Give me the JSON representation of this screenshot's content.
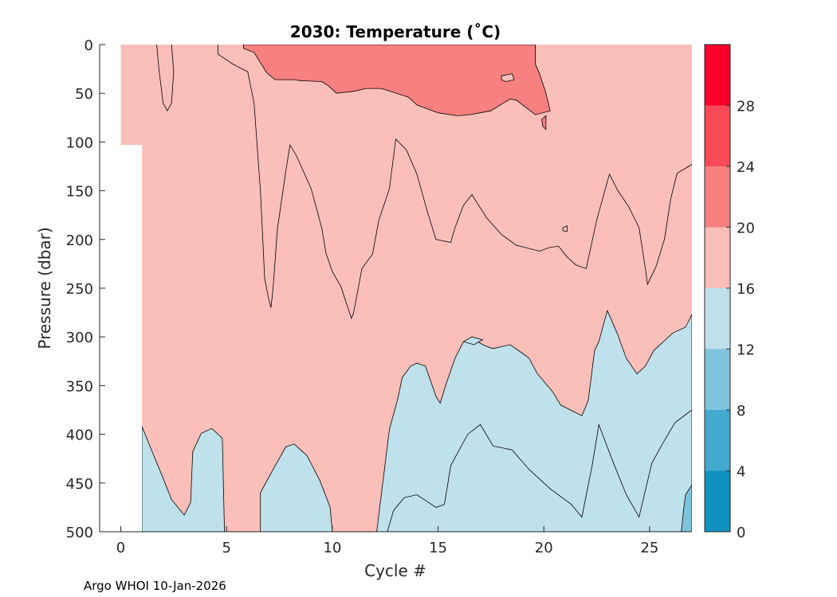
{
  "chart_data": {
    "type": "contour",
    "title": "2030:  Temperature (˚C)",
    "xlabel": "Cycle #",
    "ylabel": "Pressure (dbar)",
    "xlim": [
      -1,
      27
    ],
    "ylim": [
      500,
      0
    ],
    "xticks": [
      0,
      5,
      10,
      15,
      20,
      25
    ],
    "yticks": [
      0,
      50,
      100,
      150,
      200,
      250,
      300,
      350,
      400,
      450,
      500
    ],
    "colorbar": {
      "levels": [
        0,
        4,
        8,
        12,
        16,
        20,
        24,
        28,
        32
      ],
      "tick_labels": [
        0,
        4,
        8,
        12,
        16,
        20,
        24,
        28
      ],
      "colors": [
        "#0e90c0",
        "#42a9cf",
        "#7fc3dd",
        "#bfe1ec",
        "#fbbfba",
        "#f88080",
        "#f74a57",
        "#f9002a"
      ]
    },
    "background_band": {
      "from": 16,
      "to": 20,
      "color": "#fbbfba"
    },
    "regions": [
      {
        "name": "warm-20-24",
        "level": "20-24",
        "color": "#f88080",
        "points": [
          [
            5.8,
            0
          ],
          [
            19.6,
            0
          ],
          [
            19.6,
            20
          ],
          [
            19.8,
            30
          ],
          [
            20.1,
            50
          ],
          [
            20.3,
            68
          ],
          [
            19.6,
            72
          ],
          [
            18.7,
            57
          ],
          [
            18.4,
            56
          ],
          [
            17.5,
            68
          ],
          [
            17,
            70
          ],
          [
            16.5,
            72
          ],
          [
            15.9,
            73
          ],
          [
            15,
            70
          ],
          [
            14,
            62
          ],
          [
            13.6,
            54
          ],
          [
            12.6,
            47
          ],
          [
            12.3,
            45
          ],
          [
            11.6,
            45
          ],
          [
            11,
            48
          ],
          [
            10.6,
            49
          ],
          [
            10.2,
            50
          ],
          [
            9.8,
            42
          ],
          [
            9.5,
            38
          ],
          [
            8.5,
            37
          ],
          [
            8.2,
            36
          ],
          [
            7.6,
            36
          ],
          [
            7.3,
            36
          ],
          [
            6.9,
            29
          ],
          [
            6.3,
            8
          ],
          [
            5.8,
            4
          ],
          [
            5.8,
            0
          ]
        ]
      },
      {
        "name": "cool-12-16",
        "level": "12-16",
        "color": "#bfe1ec",
        "points": [
          [
            1,
            392
          ],
          [
            1.3,
            408
          ],
          [
            2,
            445
          ],
          [
            2.4,
            467
          ],
          [
            3,
            483
          ],
          [
            3.3,
            470
          ],
          [
            3.4,
            418
          ],
          [
            3.8,
            399
          ],
          [
            4.3,
            394
          ],
          [
            4.8,
            404
          ],
          [
            4.9,
            500
          ],
          [
            6.6,
            500
          ],
          [
            6.6,
            460
          ],
          [
            7.2,
            436
          ],
          [
            7.8,
            413
          ],
          [
            8.2,
            410
          ],
          [
            8.8,
            422
          ],
          [
            9.4,
            447
          ],
          [
            9.9,
            475
          ],
          [
            10,
            500
          ],
          [
            12.1,
            500
          ],
          [
            12.3,
            465
          ],
          [
            12.7,
            395
          ],
          [
            13.1,
            363
          ],
          [
            13.3,
            342
          ],
          [
            13.7,
            330
          ],
          [
            14,
            327
          ],
          [
            14.4,
            330
          ],
          [
            14.9,
            361
          ],
          [
            15.1,
            368
          ],
          [
            15.4,
            347
          ],
          [
            15.8,
            322
          ],
          [
            16.2,
            305
          ],
          [
            16.8,
            304
          ],
          [
            17.2,
            309
          ],
          [
            17.6,
            312
          ],
          [
            18.4,
            308
          ],
          [
            19,
            317
          ],
          [
            19.3,
            322
          ],
          [
            19.7,
            338
          ],
          [
            20.4,
            356
          ],
          [
            20.8,
            370
          ],
          [
            21.8,
            381
          ],
          [
            22.1,
            365
          ],
          [
            22.4,
            314
          ],
          [
            22.6,
            305
          ],
          [
            23,
            273
          ],
          [
            23.5,
            298
          ],
          [
            23.9,
            322
          ],
          [
            24.4,
            338
          ],
          [
            24.8,
            330
          ],
          [
            25.2,
            314
          ],
          [
            25.6,
            306
          ],
          [
            26.1,
            296
          ],
          [
            26.7,
            290
          ],
          [
            27,
            277
          ],
          [
            27,
            500
          ],
          [
            1,
            500
          ],
          [
            1,
            392
          ]
        ]
      },
      {
        "name": "cool-8-12",
        "level": "8-12",
        "color": "#7fc3dd",
        "points": [
          [
            26.7,
            462
          ],
          [
            27,
            452
          ],
          [
            27,
            500
          ],
          [
            26.5,
            500
          ],
          [
            26.6,
            478
          ],
          [
            26.7,
            462
          ]
        ]
      }
    ],
    "contour_lines": [
      {
        "level": 20,
        "points": [
          [
            1.7,
            0
          ],
          [
            1.8,
            25
          ],
          [
            2,
            60
          ],
          [
            2.2,
            68
          ],
          [
            2.4,
            60
          ],
          [
            2.5,
            28
          ],
          [
            2.4,
            0
          ]
        ]
      },
      {
        "level": 16,
        "points": [
          [
            4.6,
            0
          ],
          [
            4.6,
            10
          ],
          [
            5.3,
            20
          ],
          [
            6,
            28
          ],
          [
            6.3,
            60
          ],
          [
            6.6,
            150
          ],
          [
            6.8,
            240
          ],
          [
            7,
            262
          ],
          [
            7.1,
            270
          ],
          [
            7.2,
            250
          ],
          [
            7.4,
            190
          ],
          [
            7.8,
            130
          ],
          [
            8,
            103
          ],
          [
            8.3,
            114
          ],
          [
            9,
            148
          ],
          [
            9.5,
            188
          ],
          [
            9.7,
            214
          ],
          [
            10,
            233
          ],
          [
            10.4,
            248
          ],
          [
            10.9,
            281
          ],
          [
            11,
            276
          ],
          [
            11.4,
            230
          ],
          [
            11.9,
            215
          ],
          [
            12.2,
            180
          ],
          [
            12.7,
            148
          ],
          [
            13,
            97
          ],
          [
            13.5,
            108
          ],
          [
            14,
            133
          ],
          [
            14.5,
            172
          ],
          [
            14.9,
            200
          ],
          [
            15.6,
            203
          ],
          [
            15.8,
            188
          ],
          [
            16.2,
            165
          ],
          [
            16.6,
            154
          ],
          [
            17.3,
            178
          ],
          [
            18,
            195
          ],
          [
            18.7,
            206
          ],
          [
            19.8,
            212
          ],
          [
            20.3,
            208
          ],
          [
            20.7,
            207
          ],
          [
            21.1,
            218
          ],
          [
            21.5,
            226
          ],
          [
            22,
            230
          ],
          [
            22.5,
            180
          ],
          [
            23.1,
            133
          ],
          [
            23.5,
            150
          ],
          [
            24,
            166
          ],
          [
            24.5,
            188
          ],
          [
            24.8,
            230
          ],
          [
            24.9,
            246
          ],
          [
            25.3,
            228
          ],
          [
            25.7,
            200
          ],
          [
            26,
            158
          ],
          [
            26.3,
            132
          ],
          [
            27,
            123
          ]
        ]
      },
      {
        "level": 12,
        "points": [
          [
            15.3,
            472
          ],
          [
            15.6,
            432
          ],
          [
            16.4,
            400
          ],
          [
            17,
            390
          ],
          [
            17.6,
            412
          ],
          [
            18.5,
            416
          ],
          [
            19.3,
            436
          ],
          [
            20.3,
            456
          ],
          [
            21.3,
            472
          ],
          [
            21.8,
            485
          ],
          [
            22.3,
            430
          ],
          [
            22.6,
            390
          ],
          [
            23.3,
            430
          ],
          [
            23.9,
            462
          ],
          [
            24.5,
            485
          ],
          [
            25.1,
            430
          ],
          [
            25.6,
            410
          ],
          [
            26.2,
            388
          ],
          [
            27,
            375
          ]
        ]
      },
      {
        "level": 12,
        "points": [
          [
            12.6,
            500
          ],
          [
            12.9,
            478
          ],
          [
            13.4,
            465
          ],
          [
            14,
            462
          ],
          [
            14.9,
            475
          ],
          [
            15.3,
            472
          ]
        ]
      }
    ],
    "small_features": [
      {
        "name": "warm-island",
        "points": [
          [
            18,
            32
          ],
          [
            18.5,
            30
          ],
          [
            18.6,
            36
          ],
          [
            18.2,
            38
          ],
          [
            18,
            36
          ],
          [
            18,
            32
          ]
        ],
        "color": "#fbbfba"
      },
      {
        "name": "warm-drip",
        "points": [
          [
            19.9,
            77
          ],
          [
            20.1,
            73
          ],
          [
            20.1,
            87
          ],
          [
            19.95,
            84
          ],
          [
            19.9,
            77
          ]
        ],
        "color": "#f88080"
      },
      {
        "name": "small-loop",
        "points": [
          [
            20.9,
            188
          ],
          [
            21.1,
            186
          ],
          [
            21.1,
            192
          ],
          [
            20.9,
            191
          ],
          [
            20.9,
            188
          ]
        ],
        "color": "none"
      },
      {
        "name": "cool-islet",
        "points": [
          [
            16.2,
            305
          ],
          [
            16.6,
            300
          ],
          [
            17.1,
            303
          ],
          [
            16.7,
            308
          ],
          [
            16.2,
            305
          ]
        ],
        "color": "#bfe1ec"
      }
    ],
    "missing_data": {
      "name": "no-data-corner",
      "points": [
        [
          -1,
          0
        ],
        [
          0,
          0
        ],
        [
          0,
          103
        ],
        [
          1,
          103
        ],
        [
          1,
          500
        ],
        [
          -1,
          500
        ],
        [
          -1,
          0
        ]
      ]
    }
  },
  "footer": {
    "credit": "Argo WHOI 10-Jan-2026"
  }
}
